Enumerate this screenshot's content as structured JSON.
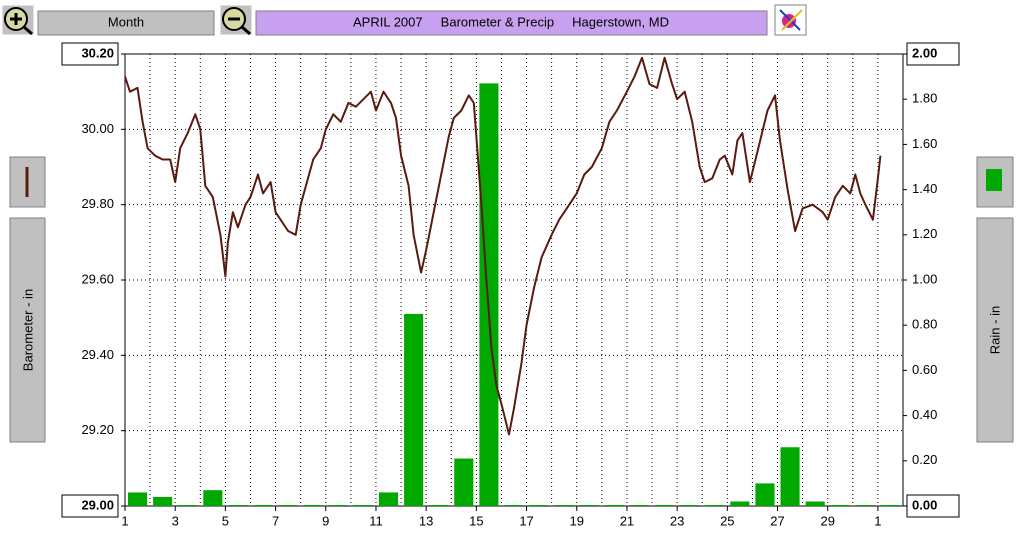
{
  "ui": {
    "period": "Month"
  },
  "chart_data": {
    "type": "combo",
    "title": "APRIL 2007     Barometer & Precip     Hagerstown, MD",
    "y_label": "Barometer - in",
    "y2_label": "Rain - in",
    "xlim": [
      1,
      32
    ],
    "xticks": [
      1,
      3,
      5,
      7,
      9,
      11,
      13,
      15,
      17,
      19,
      21,
      23,
      25,
      27,
      29,
      {
        "value": 31,
        "label": "1"
      }
    ],
    "x_minor_step": 1,
    "ylim": [
      29.0,
      30.2
    ],
    "yticks": [
      {
        "value": 29.0,
        "label": "29.00"
      },
      {
        "value": 29.2,
        "label": "29.20"
      },
      {
        "value": 29.4,
        "label": "29.40"
      },
      {
        "value": 29.6,
        "label": "29.60"
      },
      {
        "value": 29.8,
        "label": "29.80"
      },
      {
        "value": 30.0,
        "label": "30.00"
      },
      {
        "value": 30.2,
        "label": "30.20"
      }
    ],
    "y2lim": [
      0,
      2
    ],
    "y2ticks": [
      {
        "value": 0,
        "label": "0.00"
      },
      {
        "value": 0.2,
        "label": "0.20"
      },
      {
        "value": 0.4,
        "label": "0.40"
      },
      {
        "value": 0.6,
        "label": "0.60"
      },
      {
        "value": 0.8,
        "label": "0.80"
      },
      {
        "value": 1.0,
        "label": "1.00"
      },
      {
        "value": 1.2,
        "label": "1.20"
      },
      {
        "value": 1.4,
        "label": "1.40"
      },
      {
        "value": 1.6,
        "label": "1.60"
      },
      {
        "value": 1.8,
        "label": "1.80"
      },
      {
        "value": 2.0,
        "label": "2.00"
      }
    ],
    "grid": true,
    "series": [
      {
        "type": "bar",
        "axis": "y2",
        "color": "#00a800",
        "x": [
          1,
          2,
          3,
          4,
          5,
          6,
          7,
          8,
          9,
          10,
          11,
          12,
          13,
          14,
          15,
          16,
          17,
          18,
          19,
          20,
          21,
          22,
          23,
          24,
          25,
          26,
          27,
          28,
          29,
          30,
          31
        ],
        "values": [
          0.06,
          0.04,
          0,
          0.07,
          0,
          0,
          0,
          0,
          0,
          0,
          0.06,
          0.85,
          0,
          0.21,
          1.87,
          0,
          0,
          0,
          0,
          0,
          0,
          0,
          0,
          0,
          0.02,
          0.1,
          0.26,
          0.02,
          0,
          0,
          0
        ]
      },
      {
        "type": "line",
        "color": "#5a1a10",
        "x": [
          1.0,
          1.2,
          1.5,
          1.7,
          1.9,
          2.2,
          2.5,
          2.8,
          3.0,
          3.2,
          3.5,
          3.8,
          4.0,
          4.2,
          4.5,
          4.8,
          5.0,
          5.1,
          5.3,
          5.5,
          5.8,
          6.0,
          6.3,
          6.5,
          6.8,
          7.0,
          7.3,
          7.5,
          7.8,
          8.0,
          8.5,
          8.8,
          9.0,
          9.3,
          9.6,
          9.9,
          10.2,
          10.5,
          10.8,
          11.0,
          11.3,
          11.6,
          11.8,
          12.0,
          12.3,
          12.5,
          12.8,
          13.0,
          13.3,
          13.6,
          13.9,
          14.1,
          14.4,
          14.7,
          14.9,
          15.0,
          15.2,
          15.4,
          15.6,
          15.8,
          16.0,
          16.3,
          16.5,
          16.8,
          17.0,
          17.3,
          17.6,
          18.0,
          18.3,
          18.7,
          19.0,
          19.3,
          19.6,
          20.0,
          20.3,
          20.6,
          21.0,
          21.3,
          21.6,
          21.9,
          22.2,
          22.5,
          22.8,
          23.0,
          23.3,
          23.6,
          23.9,
          24.1,
          24.4,
          24.7,
          24.9,
          25.2,
          25.4,
          25.6,
          25.9,
          26.2,
          26.6,
          26.9,
          27.1,
          27.4,
          27.7,
          28.0,
          28.4,
          28.8,
          29.0,
          29.3,
          29.6,
          29.9,
          30.1,
          30.3,
          30.5,
          30.8,
          31.0,
          31.1
        ],
        "values": [
          30.14,
          30.1,
          30.11,
          30.02,
          29.95,
          29.93,
          29.92,
          29.92,
          29.86,
          29.95,
          29.99,
          30.04,
          30.0,
          29.85,
          29.82,
          29.72,
          29.61,
          29.7,
          29.78,
          29.74,
          29.8,
          29.82,
          29.88,
          29.83,
          29.86,
          29.78,
          29.75,
          29.73,
          29.72,
          29.8,
          29.92,
          29.95,
          30.0,
          30.04,
          30.02,
          30.07,
          30.06,
          30.08,
          30.1,
          30.05,
          30.1,
          30.07,
          30.03,
          29.93,
          29.85,
          29.72,
          29.62,
          29.68,
          29.78,
          29.88,
          29.98,
          30.03,
          30.05,
          30.09,
          30.07,
          29.98,
          29.8,
          29.6,
          29.42,
          29.32,
          29.27,
          29.19,
          29.26,
          29.38,
          29.48,
          29.58,
          29.66,
          29.72,
          29.76,
          29.8,
          29.83,
          29.88,
          29.9,
          29.95,
          30.02,
          30.05,
          30.1,
          30.14,
          30.19,
          30.12,
          30.11,
          30.19,
          30.12,
          30.08,
          30.1,
          30.02,
          29.9,
          29.86,
          29.87,
          29.92,
          29.93,
          29.88,
          29.97,
          29.99,
          29.86,
          29.94,
          30.05,
          30.09,
          29.97,
          29.84,
          29.73,
          29.79,
          29.8,
          29.78,
          29.76,
          29.82,
          29.85,
          29.83,
          29.88,
          29.83,
          29.8,
          29.76,
          29.87,
          29.93
        ]
      }
    ]
  }
}
